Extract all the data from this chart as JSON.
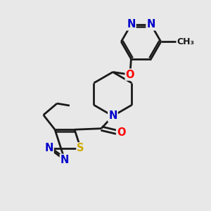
{
  "background_color": "#e8e8e8",
  "atom_colors": {
    "N": "#0000cc",
    "O": "#ff0000",
    "S": "#ccaa00",
    "C": "#000000"
  },
  "bond_color": "#1a1a1a",
  "line_width": 2.0,
  "font_size_atom": 10.5
}
